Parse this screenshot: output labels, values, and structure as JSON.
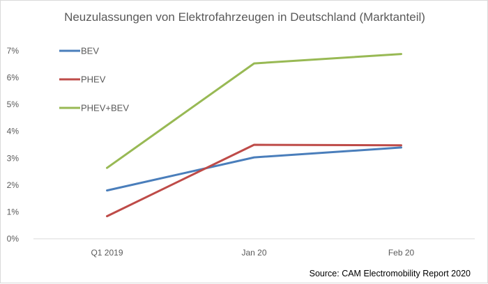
{
  "chart_data": {
    "type": "line",
    "title": "Neuzulassungen von Elektrofahrzeugen in Deutschland (Marktanteil)",
    "categories": [
      "Q1 2019",
      "Jan 20",
      "Feb 20"
    ],
    "series": [
      {
        "name": "BEV",
        "values": [
          1.8,
          3.03,
          3.4
        ],
        "color": "#4a7ebb"
      },
      {
        "name": "PHEV",
        "values": [
          0.84,
          3.5,
          3.48
        ],
        "color": "#be4b48"
      },
      {
        "name": "PHEV+BEV",
        "values": [
          2.64,
          6.53,
          6.88
        ],
        "color": "#98b954"
      }
    ],
    "yticks": [
      "0%",
      "1%",
      "2%",
      "3%",
      "4%",
      "5%",
      "6%",
      "7%"
    ],
    "ylim": [
      0,
      7
    ],
    "grid": false,
    "legend_position": "top-left",
    "source": "Source: CAM Electromobility Report 2020"
  }
}
